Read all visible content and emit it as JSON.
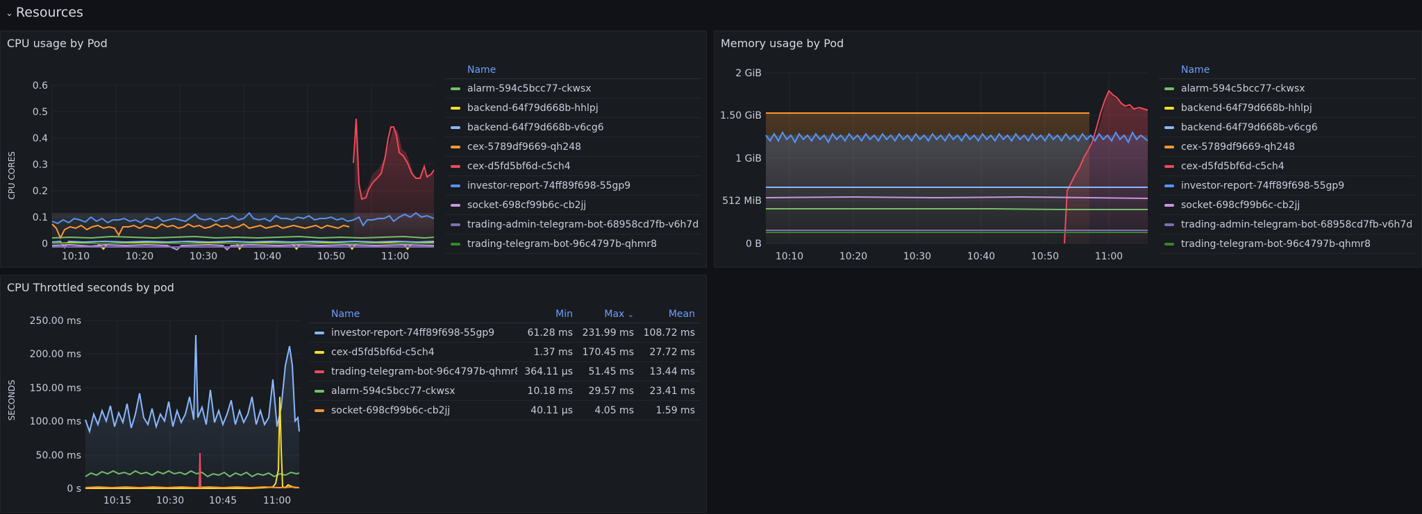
{
  "row": {
    "title": "Resources"
  },
  "cpu": {
    "title": "CPU usage by Pod",
    "ylabel": "CPU CORES",
    "yticks": [
      "0.6",
      "0.5",
      "0.4",
      "0.3",
      "0.2",
      "0.1",
      "0"
    ],
    "xticks": [
      "10:10",
      "10:20",
      "10:30",
      "10:40",
      "10:50",
      "11:00"
    ],
    "legend_header": "Name"
  },
  "memory": {
    "title": "Memory usage by Pod",
    "yticks": [
      "2 GiB",
      "1.50 GiB",
      "1 GiB",
      "512 MiB",
      "0 B"
    ],
    "xticks": [
      "10:10",
      "10:20",
      "10:30",
      "10:40",
      "10:50",
      "11:00"
    ],
    "legend_header": "Name"
  },
  "pods": [
    {
      "name": "alarm-594c5bcc77-ckwsx",
      "color": "#73bf69"
    },
    {
      "name": "backend-64f79d668b-hhlpj",
      "color": "#fade2a"
    },
    {
      "name": "backend-64f79d668b-v6cg6",
      "color": "#8ab8ff"
    },
    {
      "name": "cex-5789df9669-qh248",
      "color": "#ff9830"
    },
    {
      "name": "cex-d5fd5bf6d-c5ch4",
      "color": "#f2495c"
    },
    {
      "name": "investor-report-74ff89f698-55gp9",
      "color": "#5794f2"
    },
    {
      "name": "socket-698cf99b6c-cb2jj",
      "color": "#ca95e5"
    },
    {
      "name": "trading-admin-telegram-bot-68958cd7fb-v6h7d",
      "color": "#806eb7"
    },
    {
      "name": "trading-telegram-bot-96c4797b-qhmr8",
      "color": "#37872d"
    }
  ],
  "throttle": {
    "title": "CPU Throttled seconds by pod",
    "ylabel": "SECONDS",
    "yticks": [
      "250.00 ms",
      "200.00 ms",
      "150.00 ms",
      "100.00 ms",
      "50.00 ms",
      "0 s"
    ],
    "xticks": [
      "10:15",
      "10:30",
      "10:45",
      "11:00"
    ],
    "columns": {
      "name": "Name",
      "min": "Min",
      "max": "Max",
      "max_sort": "⌄",
      "mean": "Mean"
    },
    "rows": [
      {
        "name": "investor-report-74ff89f698-55gp9",
        "color": "#8ab8ff",
        "min": "61.28 ms",
        "max": "231.99 ms",
        "mean": "108.72 ms"
      },
      {
        "name": "cex-d5fd5bf6d-c5ch4",
        "color": "#fade2a",
        "min": "1.37 ms",
        "max": "170.45 ms",
        "mean": "27.72 ms"
      },
      {
        "name": "trading-telegram-bot-96c4797b-qhmr8",
        "color": "#f2495c",
        "min": "364.11 µs",
        "max": "51.45 ms",
        "mean": "13.44 ms"
      },
      {
        "name": "alarm-594c5bcc77-ckwsx",
        "color": "#73bf69",
        "min": "10.18 ms",
        "max": "29.57 ms",
        "mean": "23.41 ms"
      },
      {
        "name": "socket-698cf99b6c-cb2jj",
        "color": "#ff9830",
        "min": "40.11 µs",
        "max": "4.05 ms",
        "mean": "1.59 ms"
      }
    ]
  }
}
